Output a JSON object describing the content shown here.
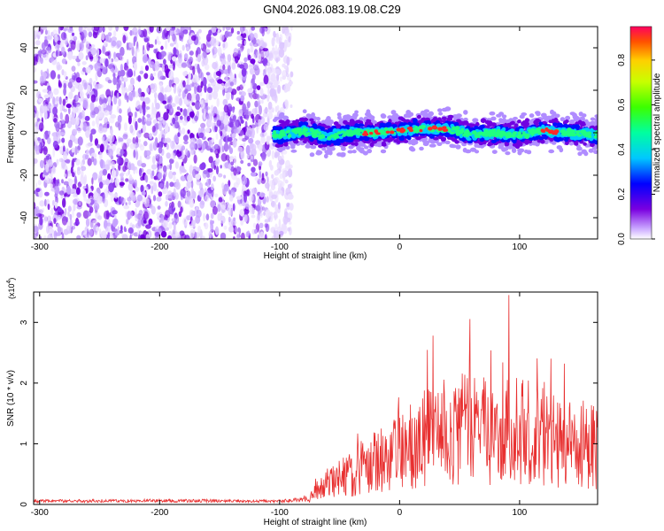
{
  "title": "GN04.2026.083.19.08.C29",
  "chart_data": [
    {
      "type": "heatmap",
      "xlabel": "Height of straight line (km)",
      "ylabel": "Frequency (Hz)",
      "xlim": [
        -305,
        165
      ],
      "ylim": [
        -50,
        50
      ],
      "xticks": [
        -300,
        -200,
        -100,
        0,
        100
      ],
      "yticks": [
        -40,
        -20,
        0,
        20,
        40
      ],
      "xtick_labels": [
        "-300",
        "-200",
        "-100",
        "0",
        "100"
      ],
      "ytick_labels": [
        "-40",
        "-20",
        "0",
        "20",
        "40"
      ],
      "colorbar": {
        "label": "Normalized spectral amplitude",
        "range": [
          0.0,
          0.95
        ],
        "ticks": [
          0.0,
          0.2,
          0.4,
          0.6,
          0.8
        ],
        "tick_labels": [
          "0.0",
          "0.2",
          "0.4",
          "0.6",
          "0.8"
        ]
      },
      "noise_region_x": [
        -305,
        -90
      ],
      "signal_band": {
        "x_start": -105,
        "x_end": 165,
        "center_hz": [
          {
            "x": -100,
            "y": -1
          },
          {
            "x": -80,
            "y": 1
          },
          {
            "x": -60,
            "y": -2
          },
          {
            "x": -40,
            "y": 0
          },
          {
            "x": -20,
            "y": 0
          },
          {
            "x": 0,
            "y": 1
          },
          {
            "x": 20,
            "y": 2
          },
          {
            "x": 40,
            "y": 2
          },
          {
            "x": 60,
            "y": -1
          },
          {
            "x": 80,
            "y": 0
          },
          {
            "x": 100,
            "y": -1
          },
          {
            "x": 120,
            "y": 1
          },
          {
            "x": 140,
            "y": 0
          },
          {
            "x": 165,
            "y": -1
          }
        ]
      }
    },
    {
      "type": "line",
      "xlabel": "Height of straight line (km)",
      "ylabel": "SNR (10 * v/v)",
      "multiplier_label": "(x10",
      "multiplier_exp": "4",
      "multiplier_close": ")",
      "xlim": [
        -305,
        165
      ],
      "ylim": [
        0,
        3.5
      ],
      "xticks": [
        -300,
        -200,
        -100,
        0,
        100
      ],
      "yticks": [
        0,
        1,
        2,
        3
      ],
      "xtick_labels": [
        "-300",
        "-200",
        "-100",
        "0",
        "100"
      ],
      "ytick_labels": [
        "0",
        "1",
        "2",
        "3"
      ],
      "series": [
        {
          "name": "SNR",
          "color": "#e83030",
          "envelope": [
            {
              "x": -305,
              "y": 0.06
            },
            {
              "x": -200,
              "y": 0.07
            },
            {
              "x": -100,
              "y": 0.06
            },
            {
              "x": -75,
              "y": 0.1
            },
            {
              "x": -65,
              "y": 0.3
            },
            {
              "x": -50,
              "y": 0.45
            },
            {
              "x": -35,
              "y": 0.55
            },
            {
              "x": -20,
              "y": 0.75
            },
            {
              "x": -5,
              "y": 0.9
            },
            {
              "x": 10,
              "y": 1.0
            },
            {
              "x": 30,
              "y": 1.2
            },
            {
              "x": 50,
              "y": 1.3
            },
            {
              "x": 70,
              "y": 1.25
            },
            {
              "x": 90,
              "y": 1.3
            },
            {
              "x": 110,
              "y": 1.2
            },
            {
              "x": 130,
              "y": 1.05
            },
            {
              "x": 150,
              "y": 1.0
            },
            {
              "x": 165,
              "y": 0.95
            }
          ],
          "peak": {
            "x": 91,
            "y": 3.45
          }
        }
      ]
    }
  ]
}
